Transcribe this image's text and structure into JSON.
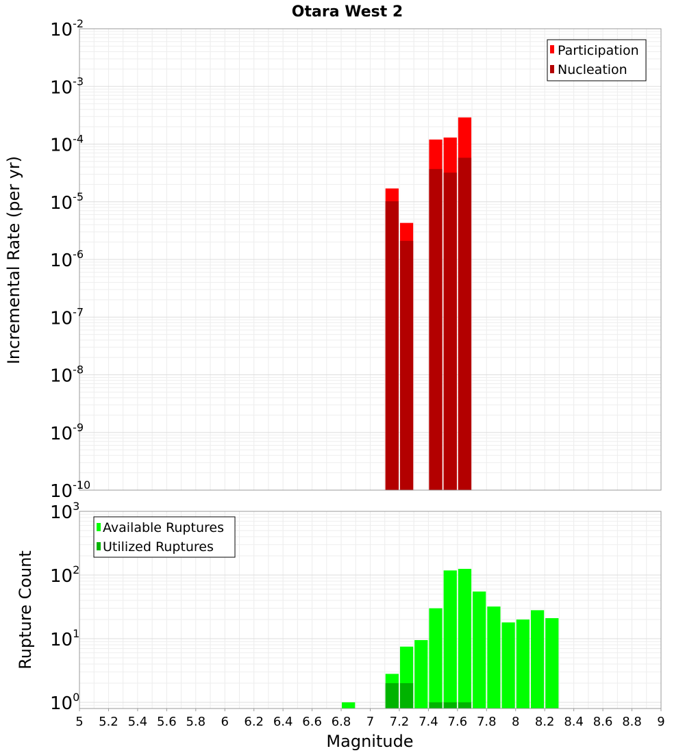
{
  "chart_data": [
    {
      "type": "bar",
      "title": "Otara West 2",
      "ylabel": "Incremental Rate (per yr)",
      "xlim": [
        5,
        9
      ],
      "ylim": [
        1e-10,
        0.01
      ],
      "yscale": "log",
      "bin_width": 0.1,
      "grid": true,
      "legend_position": "top-right",
      "series": [
        {
          "name": "Participation",
          "color": "#ff0000",
          "x": [
            7.15,
            7.25,
            7.45,
            7.55,
            7.65
          ],
          "values": [
            1.7e-05,
            4.3e-06,
            0.00012,
            0.00013,
            0.00029
          ]
        },
        {
          "name": "Nucleation",
          "color": "#b30000",
          "x": [
            7.15,
            7.25,
            7.45,
            7.55,
            7.65
          ],
          "values": [
            1.02e-05,
            2.1e-06,
            3.7e-05,
            3.2e-05,
            5.8e-05
          ]
        }
      ]
    },
    {
      "type": "bar",
      "ylabel": "Rupture Count",
      "xlabel": "Magnitude",
      "xlim": [
        5,
        9
      ],
      "ylim": [
        0.8,
        1000
      ],
      "yscale": "log",
      "bin_width": 0.1,
      "grid": true,
      "legend_position": "top-left",
      "series": [
        {
          "name": "Available Ruptures",
          "color": "#00ff00",
          "x": [
            6.85,
            7.15,
            7.25,
            7.35,
            7.45,
            7.55,
            7.65,
            7.75,
            7.85,
            7.95,
            8.05,
            8.15,
            8.25
          ],
          "values": [
            1,
            2.8,
            7.5,
            9.5,
            30,
            118,
            125,
            55,
            32,
            18,
            20,
            28,
            21
          ]
        },
        {
          "name": "Utilized Ruptures",
          "color": "#00b300",
          "x": [
            7.15,
            7.25,
            7.45,
            7.55,
            7.65
          ],
          "values": [
            2,
            2,
            1,
            1,
            1
          ]
        }
      ]
    }
  ],
  "x_ticks": [
    "5",
    "5.2",
    "5.4",
    "5.6",
    "5.8",
    "6",
    "6.2",
    "6.4",
    "6.6",
    "6.8",
    "7",
    "7.2",
    "7.4",
    "7.6",
    "7.8",
    "8",
    "8.2",
    "8.4",
    "8.6",
    "8.8",
    "9"
  ],
  "top_y_ticks": [
    {
      "base": "10",
      "exp": "-10"
    },
    {
      "base": "10",
      "exp": "-9"
    },
    {
      "base": "10",
      "exp": "-8"
    },
    {
      "base": "10",
      "exp": "-7"
    },
    {
      "base": "10",
      "exp": "-6"
    },
    {
      "base": "10",
      "exp": "-5"
    },
    {
      "base": "10",
      "exp": "-4"
    },
    {
      "base": "10",
      "exp": "-3"
    },
    {
      "base": "10",
      "exp": "-2"
    }
  ],
  "bottom_y_ticks": [
    {
      "base": "10",
      "exp": "0"
    },
    {
      "base": "10",
      "exp": "1"
    },
    {
      "base": "10",
      "exp": "2"
    },
    {
      "base": "10",
      "exp": "3"
    }
  ]
}
